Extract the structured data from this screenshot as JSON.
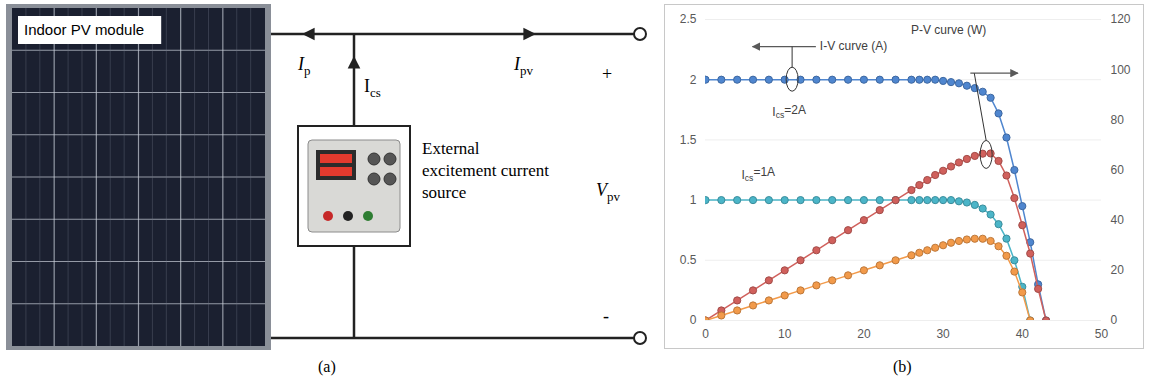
{
  "diagram": {
    "caption": "(a)",
    "module_label": "Indoor PV module",
    "source_label": "External excitement current source",
    "currents": [
      {
        "text": "I",
        "sub": "p"
      },
      {
        "text": "I",
        "sub": "cs"
      },
      {
        "text": "I",
        "sub": "pv"
      }
    ],
    "voltage": {
      "text": "V",
      "sub": "pv"
    },
    "terminals": [
      "+",
      "-"
    ]
  },
  "chart_data": {
    "type": "line",
    "caption": "(b)",
    "x": [
      0,
      2,
      4,
      6,
      8,
      10,
      12,
      14,
      16,
      18,
      20,
      22,
      24,
      26,
      27,
      28,
      29,
      30,
      31,
      32,
      33,
      34,
      35,
      36,
      37,
      38,
      39,
      40,
      41,
      42,
      43
    ],
    "xlim": [
      0,
      50
    ],
    "xticks": [
      0,
      10,
      20,
      30,
      40,
      50
    ],
    "ylim": [
      0,
      2.5
    ],
    "yticks": [
      0,
      0.5,
      1,
      1.5,
      2,
      2.5
    ],
    "y2lim": [
      0,
      120
    ],
    "y2ticks": [
      0,
      20,
      40,
      60,
      80,
      100,
      120
    ],
    "grid": true,
    "series": [
      {
        "color": "#4f86cf",
        "marker": "circle",
        "values": [
          2,
          2,
          2,
          2,
          2,
          2,
          2,
          2,
          2,
          2,
          2,
          2,
          2,
          2,
          2,
          2,
          2,
          1.99,
          1.98,
          1.97,
          1.95,
          1.93,
          1.9,
          1.85,
          1.72,
          1.52,
          1.25,
          0.95,
          0.65,
          0.3,
          0
        ]
      },
      {
        "color": "#d0605c",
        "marker": "circle",
        "axis": "y2",
        "values": [
          0,
          4,
          8,
          12,
          16,
          20,
          24,
          28,
          32,
          36,
          40,
          44,
          48,
          52,
          54,
          56,
          58,
          59.7,
          61.4,
          63,
          64.4,
          65.6,
          66.5,
          66.6,
          63.6,
          57.8,
          48.8,
          38,
          26.7,
          12.6,
          0
        ]
      },
      {
        "color": "#4bb5c8",
        "marker": "circle",
        "values": [
          1,
          1,
          1,
          1,
          1,
          1,
          1,
          1,
          1,
          1,
          1,
          1,
          1,
          1,
          1,
          1,
          1,
          1,
          1,
          0.99,
          0.98,
          0.96,
          0.93,
          0.88,
          0.8,
          0.68,
          0.5,
          0.28,
          0,
          null,
          null
        ]
      },
      {
        "color": "#f29a4a",
        "marker": "circle",
        "axis": "y2",
        "values": [
          0,
          2,
          4,
          6,
          8,
          10,
          12,
          14,
          16,
          18,
          20,
          22,
          24,
          26,
          27,
          28,
          29,
          30,
          31,
          31.7,
          32.3,
          32.6,
          32.6,
          31.7,
          29.6,
          25.8,
          19.5,
          11.2,
          0,
          null,
          null
        ]
      }
    ],
    "annotations": [
      {
        "text": "I-V curve (A)"
      },
      {
        "text": "P-V curve (W)"
      },
      {
        "text": "I",
        "sub": "cs",
        "after": "=2A"
      },
      {
        "text": "I",
        "sub": "cs",
        "after": "=1A"
      }
    ]
  }
}
